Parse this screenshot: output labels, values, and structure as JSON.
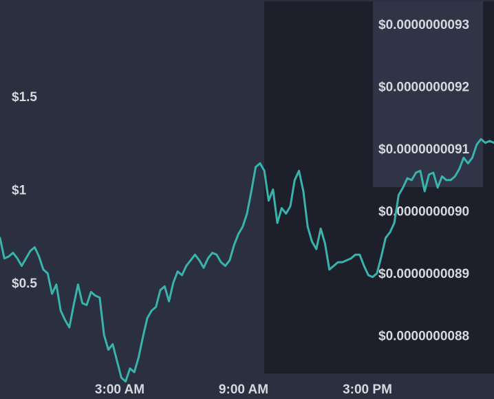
{
  "chart_data": {
    "type": "line",
    "title": "",
    "xlabel": "",
    "ylabel": "",
    "x_ticks": [
      "3:00 AM",
      "9:00 AM",
      "3:00 PM"
    ],
    "left_axis": {
      "ticks": [
        "$1.5",
        "$1",
        "$0.5"
      ],
      "tick_values": [
        1.5,
        1.0,
        0.5
      ]
    },
    "right_axis": {
      "ticks": [
        "$0.0000000093",
        "$0.0000000092",
        "$0.0000000091",
        "$0.0000000090",
        "$0.0000000089",
        "$0.0000000088"
      ],
      "tick_values": [
        9.3e-09,
        9.2e-09,
        9.1e-09,
        9e-09,
        8.9e-09,
        8.8e-09
      ]
    },
    "series": [
      {
        "values": [
          0.77,
          0.66,
          0.67,
          0.69,
          0.66,
          0.62,
          0.66,
          0.7,
          0.72,
          0.67,
          0.6,
          0.58,
          0.47,
          0.52,
          0.38,
          0.33,
          0.29,
          0.41,
          0.52,
          0.42,
          0.41,
          0.48,
          0.46,
          0.45,
          0.25,
          0.17,
          0.2,
          0.11,
          0.02,
          0.0,
          0.07,
          0.05,
          0.13,
          0.24,
          0.34,
          0.38,
          0.4,
          0.49,
          0.51,
          0.43,
          0.53,
          0.59,
          0.57,
          0.62,
          0.65,
          0.68,
          0.65,
          0.61,
          0.66,
          0.69,
          0.68,
          0.64,
          0.62,
          0.65,
          0.73,
          0.79,
          0.83,
          0.9,
          1.02,
          1.15,
          1.17,
          1.13,
          0.97,
          1.03,
          0.85,
          0.93,
          0.9,
          0.94,
          1.08,
          1.13,
          1.02,
          0.83,
          0.75,
          0.71,
          0.82,
          0.74,
          0.6,
          0.62,
          0.64,
          0.64,
          0.65,
          0.66,
          0.68,
          0.68,
          0.62,
          0.57,
          0.56,
          0.58,
          0.67,
          0.77,
          0.8,
          0.85,
          1.0,
          1.04,
          1.09,
          1.08,
          1.12,
          1.13,
          1.02,
          1.11,
          1.12,
          1.04,
          1.1,
          1.08,
          1.08,
          1.1,
          1.14,
          1.2,
          1.17,
          1.2,
          1.27,
          1.3,
          1.28,
          1.29,
          1.28
        ]
      }
    ],
    "highlight_regions": [
      {
        "x_start": "8:30 AM",
        "x_end": "end",
        "description_free": true
      },
      {
        "x_start": "2:30 PM",
        "x_end": "7:00 PM",
        "description_free": true
      }
    ],
    "grid": false,
    "legend": "none",
    "colors": {
      "background": "#2b3040",
      "highlight_dark": "#1d1f2a",
      "highlight_light": "#2f3446",
      "line": "#3ab3ad",
      "text": "#d6d8dd"
    }
  }
}
